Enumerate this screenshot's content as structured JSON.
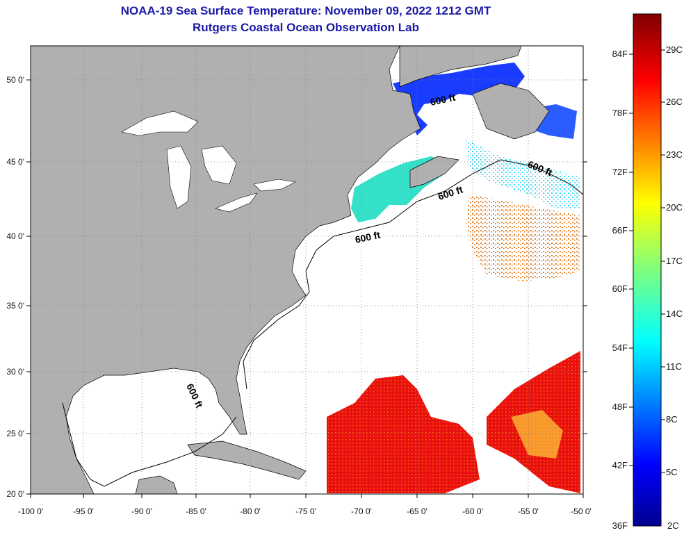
{
  "title": {
    "line1": "NOAA-19 Sea Surface Temperature:  November 09, 2022 1212 GMT",
    "line2": "Rutgers Coastal Ocean Observation Lab"
  },
  "colors": {
    "title": "#1a1aa8",
    "land": "#b0b0b0",
    "ocean_no_data": "#ffffff",
    "grid": "#808080"
  },
  "axes": {
    "x_ticks": [
      "-100 0'",
      "-95 0'",
      "-90 0'",
      "-85 0'",
      "-80 0'",
      "-75 0'",
      "-70 0'",
      "-65 0'",
      "-60 0'",
      "-55 0'",
      "-50 0'"
    ],
    "y_ticks": [
      "50 0'",
      "45 0'",
      "40 0'",
      "35 0'",
      "30 0'",
      "25 0'",
      "20 0'"
    ]
  },
  "contour": {
    "label": "600 ft",
    "instances": 5
  },
  "colorbar": {
    "fahrenheit": [
      "84F",
      "78F",
      "72F",
      "66F",
      "60F",
      "54F",
      "48F",
      "42F",
      "36F"
    ],
    "celsius": [
      "29C",
      "26C",
      "23C",
      "20C",
      "17C",
      "14C",
      "11C",
      "8C",
      "5C",
      "2C"
    ],
    "top_color": "#800000",
    "bottom_color": "#00008f"
  },
  "legend_items": [
    "SST colorbar"
  ]
}
